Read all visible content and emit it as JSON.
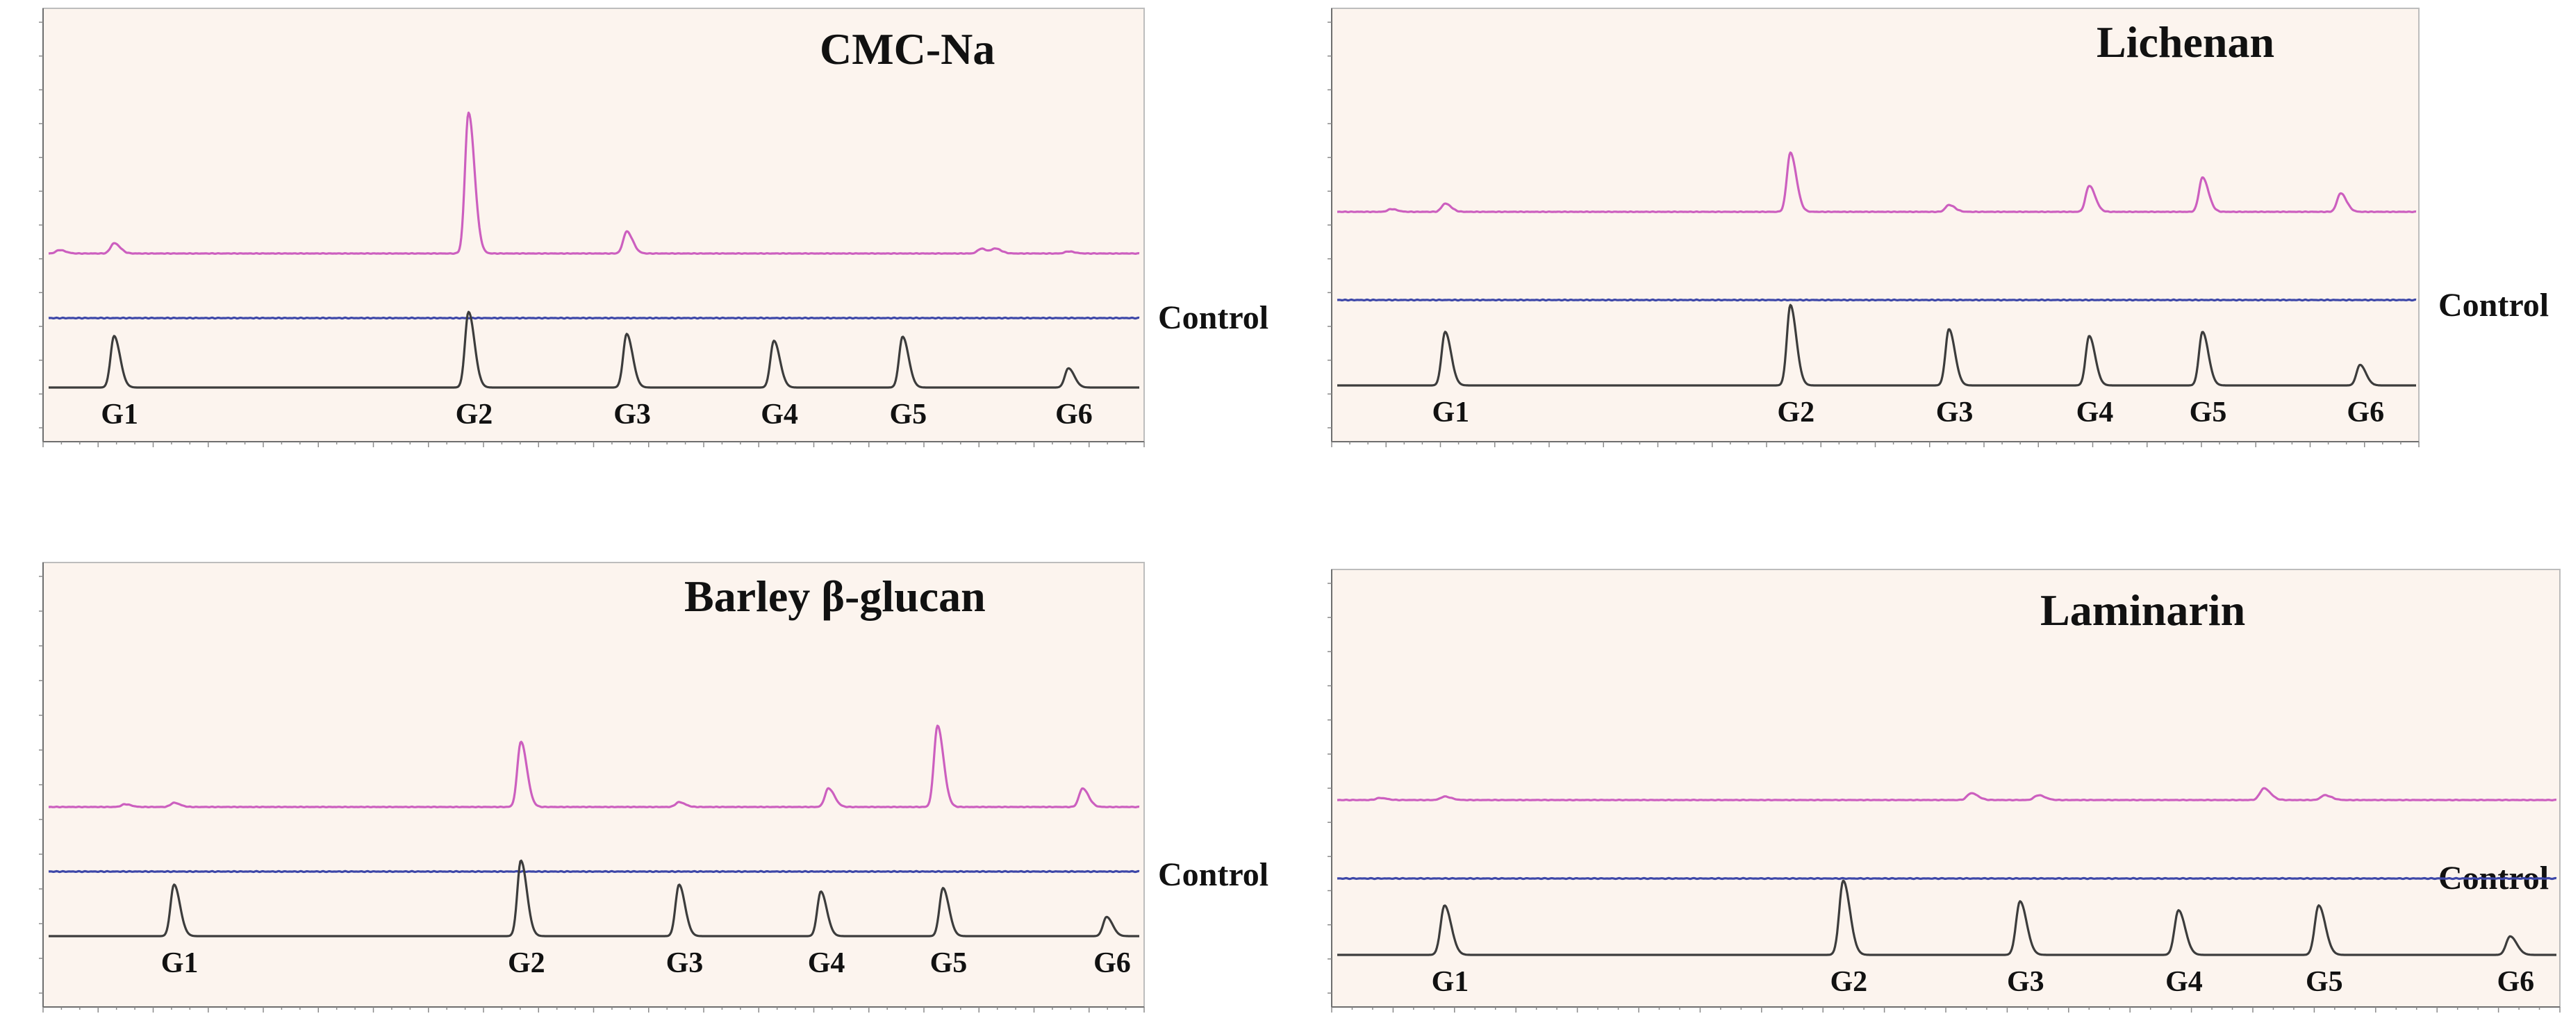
{
  "colors": {
    "sample": "#cc5fbf",
    "control": "#3d47a8",
    "standard": "#3c3c3c",
    "panel_background": "#fcf4ee"
  },
  "chart_data": [
    {
      "type": "line",
      "title": "CMC-Na",
      "control_label": "Control",
      "x_range": [
        0,
        1
      ],
      "standard_peaks": [
        {
          "label": "G1",
          "x": 0.06,
          "height": 0.75
        },
        {
          "label": "G2",
          "x": 0.385,
          "height": 1.1
        },
        {
          "label": "G3",
          "x": 0.53,
          "height": 0.78
        },
        {
          "label": "G4",
          "x": 0.665,
          "height": 0.68
        },
        {
          "label": "G5",
          "x": 0.783,
          "height": 0.74
        },
        {
          "label": "G6",
          "x": 0.935,
          "height": 0.28
        }
      ],
      "sample_peaks": [
        {
          "x": 0.01,
          "height": 0.05
        },
        {
          "x": 0.06,
          "height": 0.15
        },
        {
          "x": 0.385,
          "height": 2.05
        },
        {
          "x": 0.53,
          "height": 0.32
        },
        {
          "x": 0.855,
          "height": 0.07
        },
        {
          "x": 0.868,
          "height": 0.07
        },
        {
          "x": 0.935,
          "height": 0.03
        }
      ]
    },
    {
      "type": "line",
      "title": "Lichenan",
      "control_label": "Control",
      "x_range": [
        0,
        1
      ],
      "standard_peaks": [
        {
          "label": "G1",
          "x": 0.1,
          "height": 0.78
        },
        {
          "label": "G2",
          "x": 0.42,
          "height": 1.17
        },
        {
          "label": "G3",
          "x": 0.567,
          "height": 0.82
        },
        {
          "label": "G4",
          "x": 0.697,
          "height": 0.72
        },
        {
          "label": "G5",
          "x": 0.802,
          "height": 0.78
        },
        {
          "label": "G6",
          "x": 0.948,
          "height": 0.3
        }
      ],
      "sample_peaks": [
        {
          "x": 0.05,
          "height": 0.04
        },
        {
          "x": 0.1,
          "height": 0.12
        },
        {
          "x": 0.42,
          "height": 0.86
        },
        {
          "x": 0.567,
          "height": 0.1
        },
        {
          "x": 0.697,
          "height": 0.38
        },
        {
          "x": 0.802,
          "height": 0.5
        },
        {
          "x": 0.93,
          "height": 0.27
        }
      ]
    },
    {
      "type": "line",
      "title": "Barley β-glucan",
      "control_label": "Control",
      "x_range": [
        0,
        1
      ],
      "standard_peaks": [
        {
          "label": "G1",
          "x": 0.115,
          "height": 0.75
        },
        {
          "label": "G2",
          "x": 0.433,
          "height": 1.1
        },
        {
          "label": "G3",
          "x": 0.578,
          "height": 0.75
        },
        {
          "label": "G4",
          "x": 0.708,
          "height": 0.65
        },
        {
          "label": "G5",
          "x": 0.82,
          "height": 0.7
        },
        {
          "label": "G6",
          "x": 0.97,
          "height": 0.28
        }
      ],
      "sample_peaks": [
        {
          "x": 0.07,
          "height": 0.04
        },
        {
          "x": 0.115,
          "height": 0.06
        },
        {
          "x": 0.433,
          "height": 0.95
        },
        {
          "x": 0.578,
          "height": 0.07
        },
        {
          "x": 0.715,
          "height": 0.27
        },
        {
          "x": 0.815,
          "height": 1.18
        },
        {
          "x": 0.948,
          "height": 0.27
        }
      ]
    },
    {
      "type": "line",
      "title": "Laminarin",
      "control_label": "Control",
      "x_range": [
        0,
        1
      ],
      "standard_peaks": [
        {
          "label": "G1",
          "x": 0.088,
          "height": 0.72
        },
        {
          "label": "G2",
          "x": 0.415,
          "height": 1.08
        },
        {
          "label": "G3",
          "x": 0.56,
          "height": 0.78
        },
        {
          "label": "G4",
          "x": 0.69,
          "height": 0.65
        },
        {
          "label": "G5",
          "x": 0.805,
          "height": 0.72
        },
        {
          "label": "G6",
          "x": 0.962,
          "height": 0.27
        }
      ],
      "sample_peaks": [
        {
          "x": 0.035,
          "height": 0.03
        },
        {
          "x": 0.088,
          "height": 0.05
        },
        {
          "x": 0.52,
          "height": 0.1
        },
        {
          "x": 0.575,
          "height": 0.07
        },
        {
          "x": 0.76,
          "height": 0.17
        },
        {
          "x": 0.81,
          "height": 0.07
        }
      ]
    }
  ]
}
